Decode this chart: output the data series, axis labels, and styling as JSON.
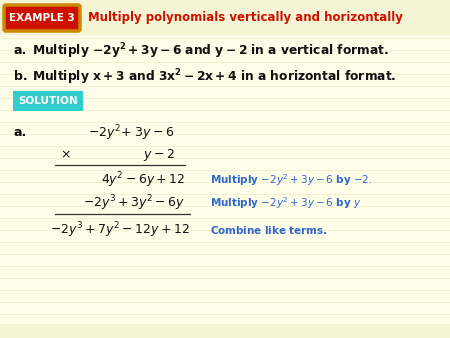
{
  "bg_color": "#FEFEE8",
  "header_bg": "#F5F5D5",
  "title_text": "Multiply polynomials vertically and horizontally",
  "example_label": "EXAMPLE 3",
  "example_bg": "#CC1100",
  "example_border": "#CC8800",
  "example_text_color": "#FFFFFF",
  "solution_bg": "#33CCCC",
  "solution_text": "SOLUTION",
  "blue_color": "#3366CC",
  "red_color": "#CC1100",
  "dark_color": "#111111",
  "line_color": "#333333",
  "header_line_color": "#CCCC99"
}
